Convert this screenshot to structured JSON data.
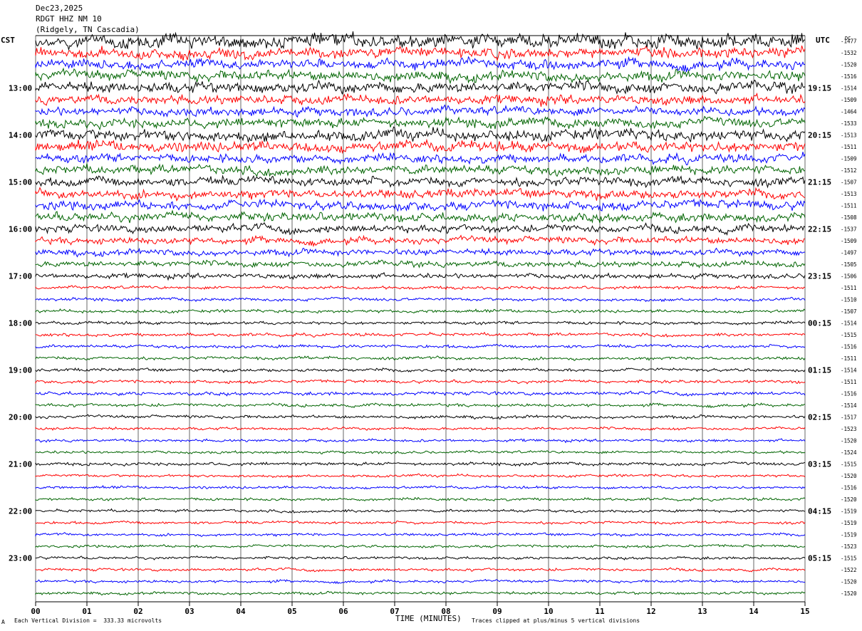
{
  "header": {
    "date": "Dec23,2025",
    "station": "RDGT HHZ NM 10",
    "location": "(Ridgely, TN Cascadia)"
  },
  "labels": {
    "left_timezone": "CST",
    "right_timezone": "UTC",
    "dc_label": "DC",
    "x_axis_title": "TIME (MINUTES)",
    "scale_note": "Each Vertical Division =  333.33 microvolts",
    "clip_note": "Traces clipped at plus/minus 5 vertical divisions",
    "corner_mark": "A"
  },
  "chart_data": {
    "type": "line",
    "trace_colors": [
      "#000000",
      "#ff0000",
      "#0000ff",
      "#006400"
    ],
    "x_ticks": [
      "00",
      "01",
      "02",
      "03",
      "04",
      "05",
      "06",
      "07",
      "08",
      "09",
      "10",
      "11",
      "12",
      "13",
      "14",
      "15"
    ],
    "xlim": [
      0,
      15
    ],
    "left_hour_labels": [
      "13:00",
      "14:00",
      "15:00",
      "16:00",
      "17:00",
      "18:00",
      "19:00",
      "20:00",
      "21:00",
      "22:00",
      "23:00"
    ],
    "right_hour_labels": [
      "19:15",
      "20:15",
      "21:15",
      "22:15",
      "23:15",
      "00:15",
      "01:15",
      "02:15",
      "03:15",
      "04:15",
      "05:15"
    ],
    "dc_offsets": [
      "-1477",
      "-1532",
      "-1520",
      "-1516",
      "-1514",
      "-1509",
      "-1464",
      "-1533",
      "-1513",
      "-1511",
      "-1509",
      "-1512",
      "-1507",
      "-1513",
      "-1511",
      "-1508",
      "-1537",
      "-1509",
      "-1497",
      "-1505",
      "-1506",
      "-1511",
      "-1510",
      "-1507",
      "-1514",
      "-1515",
      "-1516",
      "-1511",
      "-1514",
      "-1511",
      "-1516",
      "-1514",
      "-1517",
      "-1523",
      "-1520",
      "-1524",
      "-1515",
      "-1520",
      "-1516",
      "-1520",
      "-1519",
      "-1519",
      "-1519",
      "-1523",
      "-1515",
      "-1522",
      "-1520",
      "-1520"
    ],
    "trace_amplitude_divisions": [
      3.6,
      2.8,
      2.6,
      2.6,
      2.8,
      2.4,
      2.3,
      2.4,
      2.9,
      2.8,
      2.2,
      2.3,
      2.3,
      2.3,
      2.4,
      2.3,
      2.0,
      1.8,
      1.6,
      1.5,
      1.3,
      0.8,
      0.8,
      0.8,
      0.8,
      0.8,
      0.8,
      0.8,
      0.8,
      0.8,
      0.9,
      0.8,
      0.8,
      0.7,
      0.7,
      0.7,
      0.8,
      0.7,
      0.7,
      0.7,
      0.7,
      0.7,
      0.7,
      0.7,
      0.7,
      0.7,
      0.7,
      0.7
    ]
  }
}
